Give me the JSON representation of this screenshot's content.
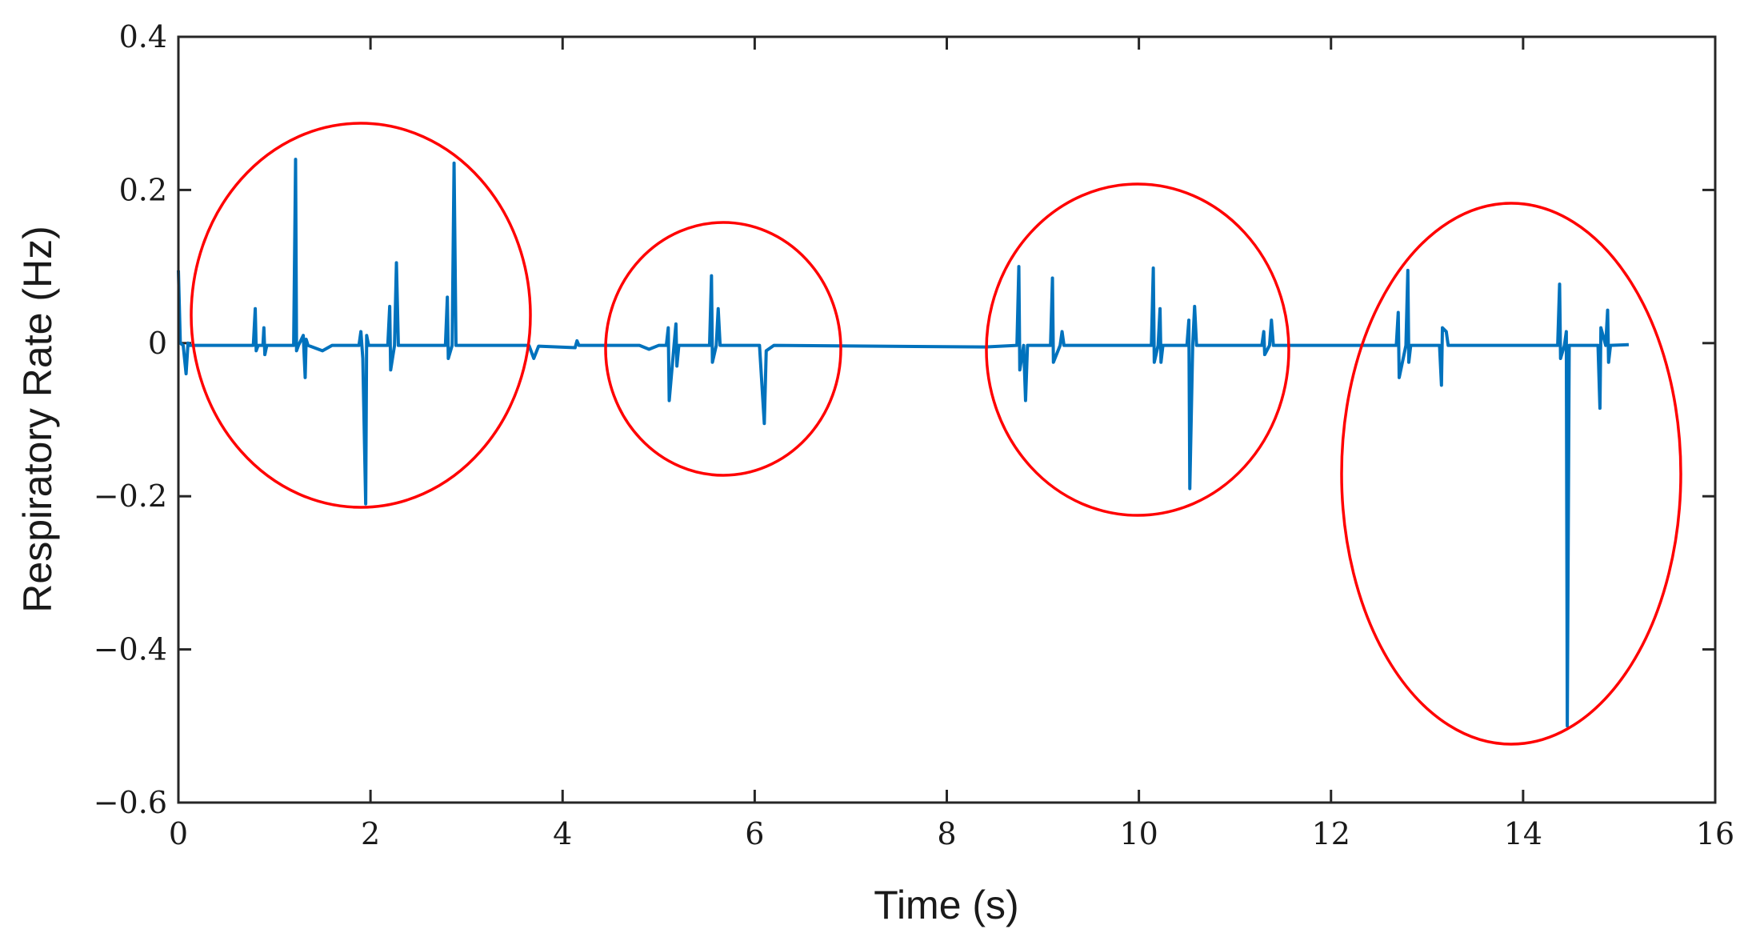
{
  "chart_data": {
    "type": "line",
    "xlabel": "Time (s)",
    "ylabel": "Respiratory Rate (Hz)",
    "x": [
      0,
      0.02,
      0.05,
      0.08,
      0.1,
      0.12,
      0.78,
      0.8,
      0.81,
      0.83,
      0.88,
      0.89,
      0.9,
      0.92,
      1.2,
      1.22,
      1.23,
      1.25,
      1.3,
      1.32,
      1.33,
      1.35,
      1.5,
      1.6,
      1.88,
      1.9,
      1.92,
      1.95,
      1.96,
      1.98,
      2.18,
      2.2,
      2.21,
      2.25,
      2.27,
      2.29,
      2.78,
      2.8,
      2.81,
      2.85,
      2.87,
      2.89,
      3.65,
      3.7,
      3.75,
      4.13,
      4.15,
      4.17,
      4.8,
      4.9,
      5.0,
      5.08,
      5.1,
      5.11,
      5.16,
      5.18,
      5.19,
      5.21,
      5.53,
      5.55,
      5.56,
      5.6,
      5.62,
      5.64,
      6.05,
      6.1,
      6.12,
      6.2,
      8.4,
      8.73,
      8.75,
      8.76,
      8.8,
      8.82,
      8.84,
      9.08,
      9.1,
      9.11,
      9.18,
      9.2,
      9.22,
      10.13,
      10.15,
      10.16,
      10.2,
      10.22,
      10.23,
      10.25,
      10.5,
      10.52,
      10.53,
      10.56,
      10.58,
      10.6,
      11.28,
      11.3,
      11.31,
      11.36,
      11.38,
      11.4,
      12.68,
      12.7,
      12.71,
      12.78,
      12.8,
      12.81,
      12.83,
      13.13,
      13.15,
      13.16,
      13.2,
      13.22,
      14.36,
      14.38,
      14.39,
      14.43,
      14.45,
      14.46,
      14.48,
      14.78,
      14.8,
      14.81,
      14.86,
      14.88,
      14.89,
      14.91,
      15.1
    ],
    "series": [
      {
        "name": "Respiratory Rate",
        "color": "#0072bd",
        "values": [
          0.095,
          0.0,
          -0.003,
          -0.04,
          0.0,
          -0.003,
          -0.003,
          0.045,
          -0.01,
          -0.003,
          -0.003,
          0.02,
          -0.015,
          -0.003,
          -0.003,
          0.24,
          -0.01,
          -0.003,
          0.01,
          -0.045,
          0.005,
          -0.003,
          -0.01,
          -0.003,
          -0.003,
          0.015,
          -0.02,
          -0.21,
          0.01,
          -0.003,
          -0.003,
          0.048,
          -0.035,
          -0.003,
          0.105,
          -0.003,
          -0.003,
          0.06,
          -0.02,
          -0.003,
          0.235,
          -0.003,
          -0.003,
          -0.02,
          -0.004,
          -0.006,
          0.003,
          -0.003,
          -0.003,
          -0.008,
          -0.003,
          -0.003,
          0.02,
          -0.075,
          -0.003,
          0.025,
          -0.03,
          -0.003,
          -0.003,
          0.088,
          -0.025,
          -0.003,
          0.045,
          -0.003,
          -0.003,
          -0.105,
          -0.01,
          -0.003,
          -0.005,
          -0.003,
          0.1,
          -0.035,
          -0.003,
          -0.075,
          -0.003,
          -0.003,
          0.085,
          -0.025,
          -0.003,
          0.015,
          -0.003,
          -0.003,
          0.098,
          -0.025,
          -0.003,
          0.045,
          -0.025,
          -0.003,
          -0.003,
          0.03,
          -0.19,
          -0.003,
          0.048,
          -0.003,
          -0.003,
          0.015,
          -0.015,
          -0.003,
          0.03,
          -0.003,
          -0.003,
          0.04,
          -0.045,
          -0.003,
          0.095,
          -0.025,
          -0.003,
          -0.003,
          -0.055,
          0.02,
          0.015,
          -0.003,
          -0.003,
          0.077,
          -0.02,
          -0.003,
          0.015,
          -0.5,
          -0.003,
          -0.003,
          -0.085,
          0.02,
          -0.003,
          0.043,
          -0.025,
          -0.003,
          -0.002
        ]
      }
    ],
    "xlim": [
      0,
      16
    ],
    "xticks": [
      0,
      2,
      4,
      6,
      8,
      10,
      12,
      14,
      16
    ],
    "ylim": [
      -0.6,
      0.4
    ],
    "yticks": [
      {
        "value": -0.6,
        "label": "−0.6"
      },
      {
        "value": -0.4,
        "label": "−0.4"
      },
      {
        "value": -0.2,
        "label": "−0.2"
      },
      0,
      0.2,
      0.4
    ],
    "grid": false
  }
}
